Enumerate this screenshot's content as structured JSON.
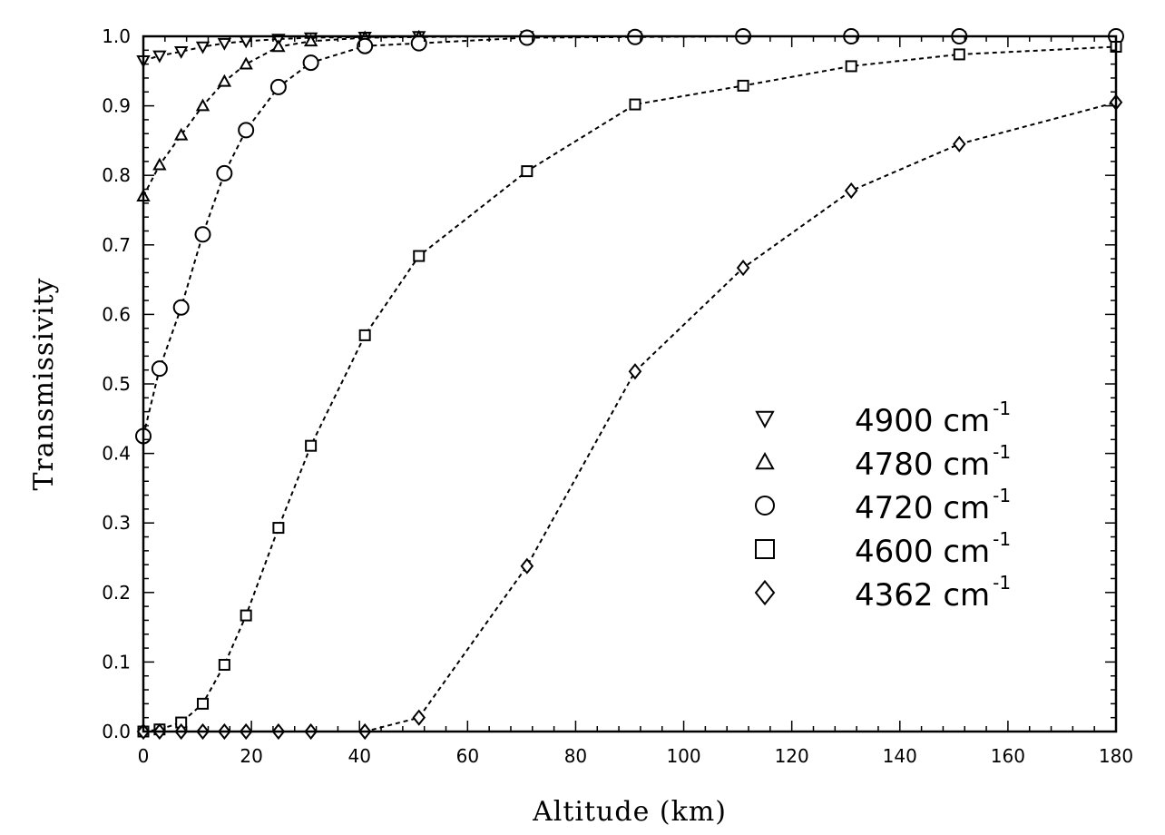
{
  "chart_data": {
    "type": "scatter",
    "xlabel": "Altitude (km)",
    "ylabel": "Transmissivity",
    "xlim": [
      0,
      180
    ],
    "ylim": [
      0,
      1
    ],
    "x_ticks": [
      0,
      20,
      40,
      60,
      80,
      100,
      120,
      140,
      160,
      180
    ],
    "y_ticks": [
      0,
      0.1,
      0.2,
      0.3,
      0.4,
      0.5,
      0.6,
      0.7,
      0.8,
      0.9,
      1.0
    ],
    "x_tick_labels": [
      "0",
      "20",
      "40",
      "60",
      "80",
      "100",
      "120",
      "140",
      "160",
      "180"
    ],
    "y_tick_labels": [
      "0.0",
      "0.1",
      "0.2",
      "0.3",
      "0.4",
      "0.5",
      "0.6",
      "0.7",
      "0.8",
      "0.9",
      "1.0"
    ],
    "grid": false,
    "legend_position": "lower-right",
    "series": [
      {
        "name": "4900 cm",
        "unit_exponent": "-1",
        "marker": "triangle-down",
        "line": "dashed",
        "x": [
          0,
          3,
          7,
          11,
          15,
          19,
          25,
          31,
          41,
          51,
          71,
          91,
          111,
          131,
          151,
          181
        ],
        "y": [
          0.965,
          0.972,
          0.978,
          0.985,
          0.99,
          0.993,
          0.996,
          0.998,
          0.999,
          1.0,
          1.0,
          1.0,
          1.0,
          1.0,
          1.0,
          1.0
        ]
      },
      {
        "name": "4780 cm",
        "unit_exponent": "-1",
        "marker": "triangle-up",
        "line": "dashed",
        "x": [
          0,
          3,
          7,
          11,
          15,
          19,
          25,
          31,
          41,
          51,
          71,
          91,
          111,
          131,
          151,
          181
        ],
        "y": [
          0.77,
          0.815,
          0.858,
          0.9,
          0.935,
          0.96,
          0.985,
          0.993,
          0.998,
          0.999,
          1.0,
          1.0,
          1.0,
          1.0,
          1.0,
          1.0
        ]
      },
      {
        "name": "4720 cm",
        "unit_exponent": "-1",
        "marker": "circle",
        "line": "dashed",
        "x": [
          0,
          3,
          7,
          11,
          15,
          19,
          25,
          31,
          41,
          51,
          71,
          91,
          111,
          131,
          151,
          181
        ],
        "y": [
          0.425,
          0.522,
          0.61,
          0.715,
          0.803,
          0.865,
          0.927,
          0.962,
          0.986,
          0.99,
          0.998,
          0.999,
          1.0,
          1.0,
          1.0,
          1.0
        ]
      },
      {
        "name": "4600 cm",
        "unit_exponent": "-1",
        "marker": "square",
        "line": "dashed",
        "x": [
          0,
          3,
          7,
          11,
          15,
          19,
          25,
          31,
          41,
          51,
          71,
          91,
          111,
          131,
          151,
          181
        ],
        "y": [
          0.0,
          0.003,
          0.013,
          0.04,
          0.096,
          0.167,
          0.293,
          0.411,
          0.57,
          0.684,
          0.806,
          0.902,
          0.929,
          0.957,
          0.974,
          0.985
        ]
      },
      {
        "name": "4362 cm",
        "unit_exponent": "-1",
        "marker": "diamond",
        "line": "dashed",
        "x": [
          0,
          3,
          7,
          11,
          15,
          19,
          25,
          31,
          41,
          51,
          71,
          91,
          111,
          131,
          151,
          181
        ],
        "y": [
          0.0,
          0.0,
          0.0,
          0.0,
          0.0,
          0.0,
          0.0,
          0.0,
          0.0,
          0.02,
          0.238,
          0.518,
          0.667,
          0.778,
          0.845,
          0.905
        ]
      }
    ]
  }
}
